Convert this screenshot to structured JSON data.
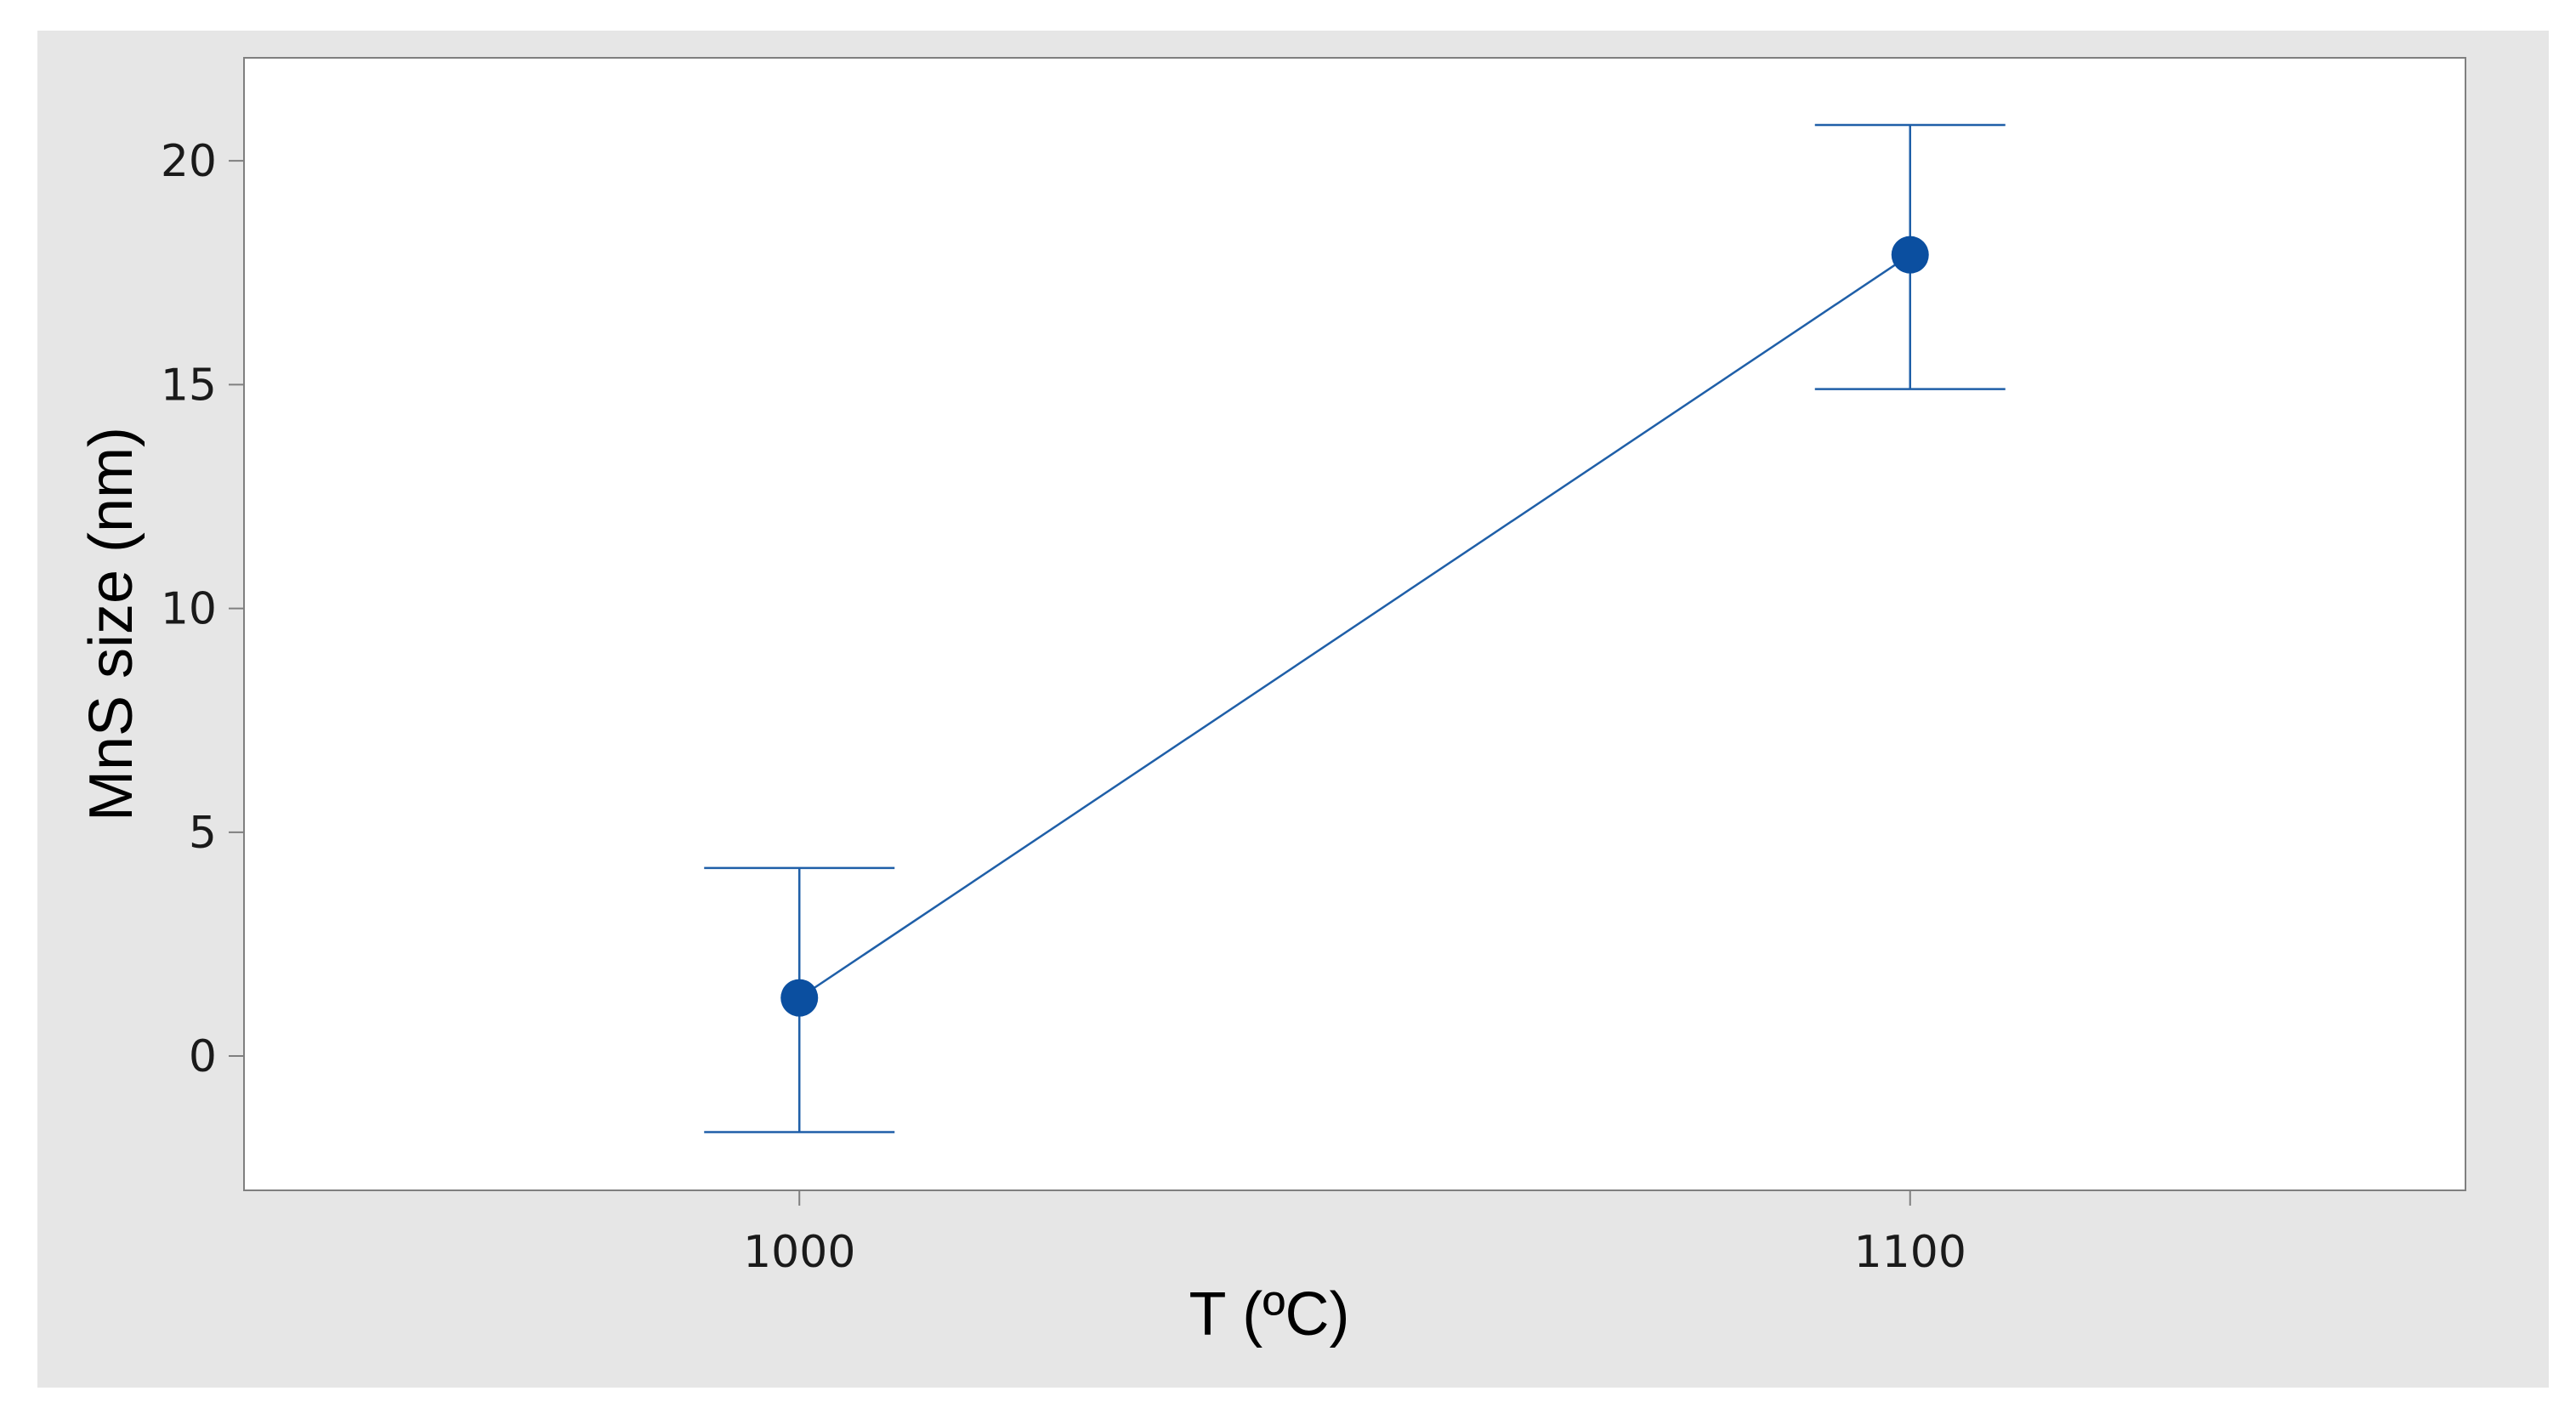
{
  "chart_data": {
    "type": "scatter",
    "title": "",
    "xlabel": "T (ºC)",
    "ylabel": "MnS size (nm)",
    "x_categories": [
      "1000",
      "1100"
    ],
    "x": [
      1000,
      1100
    ],
    "y": [
      1.3,
      17.9
    ],
    "error_low": [
      -1.7,
      14.9
    ],
    "error_high": [
      4.2,
      20.8
    ],
    "xlim": [
      950,
      1150
    ],
    "ylim": [
      -3,
      22.3
    ],
    "y_ticks": [
      0,
      5,
      10,
      15,
      20
    ],
    "x_ticks": [
      1000,
      1100
    ],
    "grid": false,
    "legend": "none",
    "connect_points": true,
    "colors": {
      "frame_background": "#e6e6e6",
      "plot_background": "#ffffff",
      "series": "#1f5fa8",
      "marker": "#0b4fa0",
      "axis": "#7f7f7f"
    }
  }
}
